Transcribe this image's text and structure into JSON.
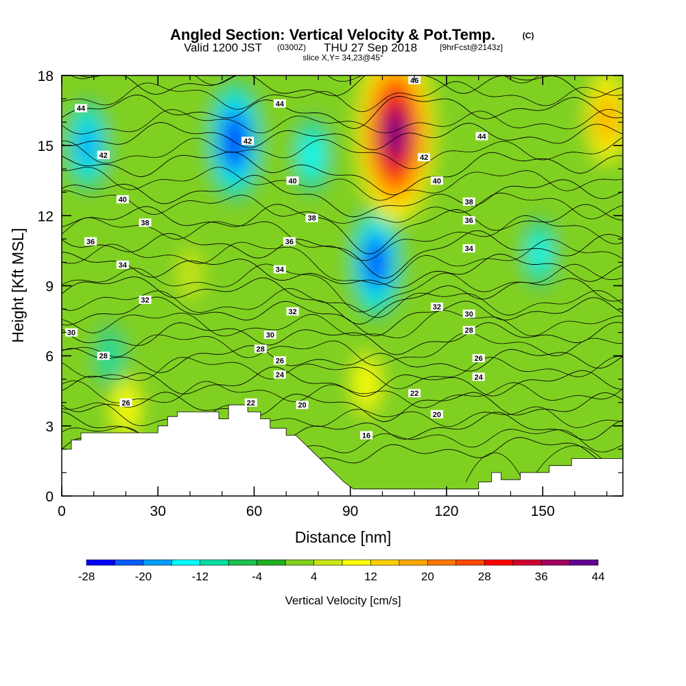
{
  "title": {
    "main": "Angled Section: Vertical Velocity & Pot.Temp.",
    "main_mark": "(C)",
    "valid_prefix": "Valid 1200 JST",
    "valid_utc": "(0300Z)",
    "valid_date": "THU 27 Sep 2018",
    "forecast": "[9hrFcst@2143z]",
    "slice": "slice X,Y= 34,23@45°"
  },
  "chart_data": {
    "type": "heatmap",
    "description_field": "Vertical velocity shading with potential temperature contours",
    "xlabel": "Distance [nm]",
    "ylabel": "Height [Kft MSL]",
    "xlim": [
      0,
      175
    ],
    "ylim": [
      0,
      18
    ],
    "xticks": [
      0,
      30,
      60,
      90,
      120,
      150
    ],
    "yticks": [
      0,
      3,
      6,
      9,
      12,
      15,
      18
    ],
    "colorbar": {
      "label": "Vertical Velocity [cm/s]",
      "tick_labels": [
        -28,
        -20,
        -12,
        -4,
        4,
        12,
        20,
        28,
        36,
        44
      ],
      "bounds": [
        -28,
        -24,
        -20,
        -16,
        -12,
        -8,
        -4,
        0,
        4,
        8,
        12,
        16,
        20,
        24,
        28,
        32,
        36,
        40,
        44
      ],
      "colors": [
        "#0000ff",
        "#0a5cff",
        "#00a0ff",
        "#00ffff",
        "#00e0a0",
        "#20c050",
        "#20b020",
        "#80d020",
        "#c8e614",
        "#ffff00",
        "#ffd000",
        "#ffa800",
        "#ff7800",
        "#ff4800",
        "#ff0000",
        "#d00030",
        "#a00060",
        "#600090"
      ]
    },
    "velocity_features": [
      {
        "x": 8,
        "y": 15.0,
        "value": -18
      },
      {
        "x": 54,
        "y": 15.2,
        "value": -26
      },
      {
        "x": 78,
        "y": 14.6,
        "value": -14
      },
      {
        "x": 98,
        "y": 10.0,
        "value": -24
      },
      {
        "x": 104,
        "y": 15.5,
        "value": 42
      },
      {
        "x": 170,
        "y": 16.2,
        "value": 18
      },
      {
        "x": 149,
        "y": 10.4,
        "value": -12
      },
      {
        "x": 95,
        "y": 4.8,
        "value": 10
      },
      {
        "x": 20,
        "y": 3.8,
        "value": 10
      },
      {
        "x": 15,
        "y": 6.0,
        "value": -10
      },
      {
        "x": 40,
        "y": 9.5,
        "value": 6
      }
    ],
    "theta_contours": [
      {
        "value": 16,
        "labels": [
          [
            95,
            2.6
          ]
        ]
      },
      {
        "value": 18,
        "labels": []
      },
      {
        "value": 20,
        "labels": [
          [
            75,
            3.9
          ],
          [
            117,
            3.5
          ]
        ]
      },
      {
        "value": 22,
        "labels": [
          [
            59,
            4.0
          ],
          [
            110,
            4.4
          ]
        ]
      },
      {
        "value": 24,
        "labels": [
          [
            68,
            5.2
          ],
          [
            130,
            5.1
          ]
        ]
      },
      {
        "value": 26,
        "labels": [
          [
            20,
            4.0
          ],
          [
            68,
            5.8
          ],
          [
            130,
            5.9
          ]
        ]
      },
      {
        "value": 28,
        "labels": [
          [
            13,
            6.0
          ],
          [
            62,
            6.3
          ],
          [
            127,
            7.1
          ]
        ]
      },
      {
        "value": 30,
        "labels": [
          [
            3,
            7.0
          ],
          [
            65,
            6.9
          ],
          [
            127,
            7.8
          ]
        ]
      },
      {
        "value": 32,
        "labels": [
          [
            26,
            8.4
          ],
          [
            72,
            7.9
          ],
          [
            117,
            8.1
          ]
        ]
      },
      {
        "value": 34,
        "labels": [
          [
            19,
            9.9
          ],
          [
            68,
            9.7
          ],
          [
            127,
            10.6
          ]
        ]
      },
      {
        "value": 36,
        "labels": [
          [
            9,
            10.9
          ],
          [
            71,
            10.9
          ],
          [
            127,
            11.8
          ]
        ]
      },
      {
        "value": 38,
        "labels": [
          [
            26,
            11.7
          ],
          [
            78,
            11.9
          ],
          [
            127,
            12.6
          ]
        ]
      },
      {
        "value": 40,
        "labels": [
          [
            19,
            12.7
          ],
          [
            72,
            13.5
          ],
          [
            117,
            13.5
          ]
        ]
      },
      {
        "value": 42,
        "labels": [
          [
            13,
            14.6
          ],
          [
            58,
            15.2
          ],
          [
            113,
            14.5
          ]
        ]
      },
      {
        "value": 44,
        "labels": [
          [
            6,
            16.6
          ],
          [
            68,
            16.8
          ],
          [
            131,
            15.4
          ]
        ]
      },
      {
        "value": 46,
        "labels": [
          [
            110,
            17.8
          ]
        ]
      }
    ],
    "terrain": [
      [
        0,
        2.0
      ],
      [
        3,
        2.0
      ],
      [
        3,
        2.4
      ],
      [
        6,
        2.4
      ],
      [
        6,
        2.7
      ],
      [
        30,
        2.7
      ],
      [
        30,
        3.0
      ],
      [
        33,
        3.0
      ],
      [
        33,
        3.4
      ],
      [
        36,
        3.4
      ],
      [
        36,
        3.6
      ],
      [
        49,
        3.6
      ],
      [
        49,
        3.3
      ],
      [
        52,
        3.3
      ],
      [
        52,
        3.9
      ],
      [
        58,
        3.9
      ],
      [
        58,
        3.6
      ],
      [
        62,
        3.6
      ],
      [
        62,
        3.3
      ],
      [
        65,
        3.3
      ],
      [
        65,
        2.9
      ],
      [
        70,
        2.9
      ],
      [
        70,
        2.6
      ],
      [
        73,
        2.6
      ],
      [
        76,
        2.2
      ],
      [
        79,
        1.8
      ],
      [
        82,
        1.4
      ],
      [
        85,
        1.0
      ],
      [
        88,
        0.6
      ],
      [
        91,
        0.3
      ],
      [
        130,
        0.3
      ],
      [
        130,
        0.6
      ],
      [
        134,
        0.6
      ],
      [
        134,
        1.0
      ],
      [
        137,
        1.0
      ],
      [
        137,
        0.7
      ],
      [
        143,
        0.7
      ],
      [
        143,
        1.0
      ],
      [
        152,
        1.0
      ],
      [
        152,
        1.3
      ],
      [
        159,
        1.3
      ],
      [
        159,
        1.6
      ],
      [
        175,
        1.6
      ],
      [
        175,
        0
      ],
      [
        0,
        0
      ]
    ]
  }
}
